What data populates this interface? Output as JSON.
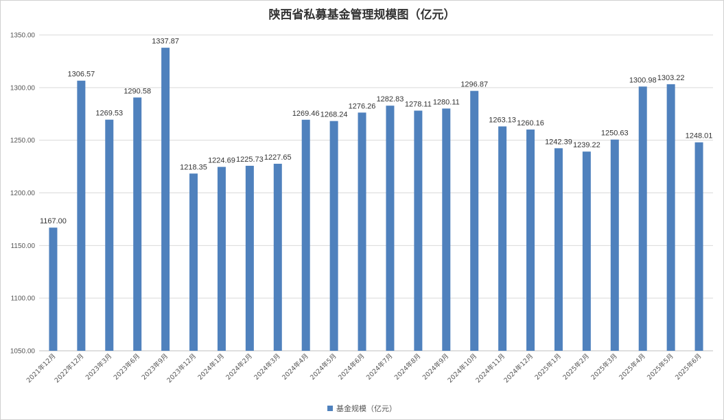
{
  "chart_data": {
    "type": "bar",
    "title": "陕西省私募基金管理规模图（亿元）",
    "categories": [
      "2021年12月",
      "2022年12月",
      "2023年3月",
      "2023年6月",
      "2023年9月",
      "2023年12月",
      "2024年1月",
      "2024年2月",
      "2024年3月",
      "2024年4月",
      "2024年5月",
      "2024年6月",
      "2024年7月",
      "2024年8月",
      "2024年9月",
      "2024年10月",
      "2024年11月",
      "2024年12月",
      "2025年1月",
      "2025年2月",
      "2025年3月",
      "2025年4月",
      "2025年5月",
      "2025年6月"
    ],
    "series": [
      {
        "name": "基金规模（亿元）",
        "values": [
          1167.0,
          1306.57,
          1269.53,
          1290.58,
          1337.87,
          1218.35,
          1224.69,
          1225.73,
          1227.65,
          1269.46,
          1268.24,
          1276.26,
          1282.83,
          1278.11,
          1280.11,
          1296.87,
          1263.13,
          1260.16,
          1242.39,
          1239.22,
          1250.63,
          1300.98,
          1303.22,
          1248.01
        ],
        "color": "#4f81bd"
      }
    ],
    "ylim": [
      1050,
      1350
    ],
    "yticks": [
      "1050.00",
      "1100.00",
      "1150.00",
      "1200.00",
      "1250.00",
      "1300.00",
      "1350.00"
    ],
    "grid": true,
    "legend_position": "bottom",
    "xlabel": "",
    "ylabel": ""
  }
}
